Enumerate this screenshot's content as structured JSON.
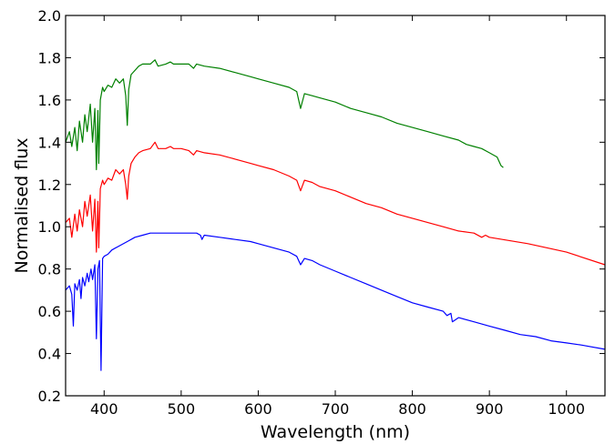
{
  "chart_data": {
    "type": "line",
    "xlabel": "Wavelength (nm)",
    "ylabel": "Normalised flux",
    "xlim": [
      350,
      1050
    ],
    "ylim": [
      0.2,
      2.0
    ],
    "xticks": [
      400,
      500,
      600,
      700,
      800,
      900,
      1000
    ],
    "xtick_labels": [
      "400",
      "500",
      "600",
      "700",
      "800",
      "900",
      "1000"
    ],
    "yticks": [
      0.2,
      0.4,
      0.6,
      0.8,
      1.0,
      1.2,
      1.4,
      1.6,
      1.8,
      2.0
    ],
    "ytick_labels": [
      "0.2",
      "0.4",
      "0.6",
      "0.8",
      "1.0",
      "1.2",
      "1.4",
      "1.6",
      "1.8",
      "2.0"
    ],
    "grid": false,
    "series": [
      {
        "color": "#008000",
        "x": [
          350,
          355,
          358,
          362,
          365,
          368,
          372,
          375,
          378,
          382,
          385,
          388,
          390,
          392,
          393,
          395,
          398,
          400,
          405,
          410,
          415,
          420,
          425,
          428,
          430,
          432,
          435,
          440,
          445,
          450,
          460,
          466,
          470,
          480,
          486,
          490,
          500,
          510,
          516,
          520,
          530,
          550,
          570,
          590,
          600,
          620,
          640,
          650,
          655,
          660,
          670,
          680,
          700,
          720,
          740,
          760,
          780,
          800,
          820,
          840,
          860,
          870,
          880,
          890,
          900,
          910,
          915,
          918
        ],
        "y": [
          1.4,
          1.45,
          1.38,
          1.47,
          1.36,
          1.5,
          1.4,
          1.53,
          1.45,
          1.58,
          1.4,
          1.56,
          1.27,
          1.55,
          1.3,
          1.6,
          1.66,
          1.64,
          1.67,
          1.66,
          1.7,
          1.68,
          1.7,
          1.62,
          1.48,
          1.65,
          1.72,
          1.74,
          1.76,
          1.77,
          1.77,
          1.79,
          1.76,
          1.77,
          1.78,
          1.77,
          1.77,
          1.77,
          1.75,
          1.77,
          1.76,
          1.75,
          1.73,
          1.71,
          1.7,
          1.68,
          1.66,
          1.64,
          1.56,
          1.63,
          1.62,
          1.61,
          1.59,
          1.56,
          1.54,
          1.52,
          1.49,
          1.47,
          1.45,
          1.43,
          1.41,
          1.39,
          1.38,
          1.37,
          1.35,
          1.33,
          1.29,
          1.28
        ]
      },
      {
        "color": "#ff0000",
        "x": [
          350,
          355,
          358,
          362,
          365,
          368,
          372,
          375,
          378,
          382,
          385,
          388,
          390,
          392,
          393,
          395,
          398,
          400,
          405,
          410,
          415,
          420,
          425,
          428,
          430,
          432,
          435,
          440,
          445,
          450,
          460,
          466,
          470,
          480,
          486,
          490,
          500,
          510,
          516,
          520,
          530,
          550,
          570,
          590,
          600,
          620,
          640,
          650,
          655,
          660,
          670,
          680,
          700,
          720,
          740,
          760,
          780,
          800,
          820,
          840,
          860,
          880,
          890,
          895,
          900,
          950,
          1000,
          1050
        ],
        "y": [
          1.02,
          1.04,
          0.95,
          1.06,
          0.98,
          1.08,
          1.0,
          1.12,
          1.05,
          1.15,
          0.98,
          1.13,
          0.88,
          1.12,
          0.9,
          1.18,
          1.22,
          1.2,
          1.23,
          1.22,
          1.27,
          1.25,
          1.27,
          1.2,
          1.13,
          1.24,
          1.3,
          1.33,
          1.35,
          1.36,
          1.37,
          1.4,
          1.37,
          1.37,
          1.38,
          1.37,
          1.37,
          1.36,
          1.34,
          1.36,
          1.35,
          1.34,
          1.32,
          1.3,
          1.29,
          1.27,
          1.24,
          1.22,
          1.17,
          1.22,
          1.21,
          1.19,
          1.17,
          1.14,
          1.11,
          1.09,
          1.06,
          1.04,
          1.02,
          1.0,
          0.98,
          0.97,
          0.95,
          0.96,
          0.95,
          0.92,
          0.88,
          0.82
        ]
      },
      {
        "color": "#0000ff",
        "x": [
          350,
          355,
          358,
          360,
          362,
          365,
          368,
          370,
          372,
          375,
          378,
          380,
          383,
          385,
          388,
          390,
          392,
          394,
          396,
          398,
          400,
          405,
          410,
          420,
          430,
          440,
          450,
          460,
          470,
          480,
          490,
          500,
          510,
          520,
          525,
          527,
          530,
          550,
          570,
          590,
          600,
          620,
          640,
          650,
          655,
          660,
          670,
          680,
          700,
          720,
          740,
          760,
          780,
          800,
          820,
          840,
          845,
          850,
          852,
          860,
          880,
          900,
          920,
          940,
          960,
          980,
          1000,
          1020,
          1050
        ],
        "y": [
          0.7,
          0.72,
          0.68,
          0.53,
          0.73,
          0.7,
          0.75,
          0.66,
          0.76,
          0.72,
          0.78,
          0.74,
          0.8,
          0.75,
          0.82,
          0.47,
          0.8,
          0.84,
          0.32,
          0.85,
          0.86,
          0.87,
          0.89,
          0.91,
          0.93,
          0.95,
          0.96,
          0.97,
          0.97,
          0.97,
          0.97,
          0.97,
          0.97,
          0.97,
          0.96,
          0.94,
          0.96,
          0.95,
          0.94,
          0.93,
          0.92,
          0.9,
          0.88,
          0.86,
          0.82,
          0.85,
          0.84,
          0.82,
          0.79,
          0.76,
          0.73,
          0.7,
          0.67,
          0.64,
          0.62,
          0.6,
          0.58,
          0.59,
          0.55,
          0.57,
          0.55,
          0.53,
          0.51,
          0.49,
          0.48,
          0.46,
          0.45,
          0.44,
          0.42
        ]
      }
    ]
  }
}
